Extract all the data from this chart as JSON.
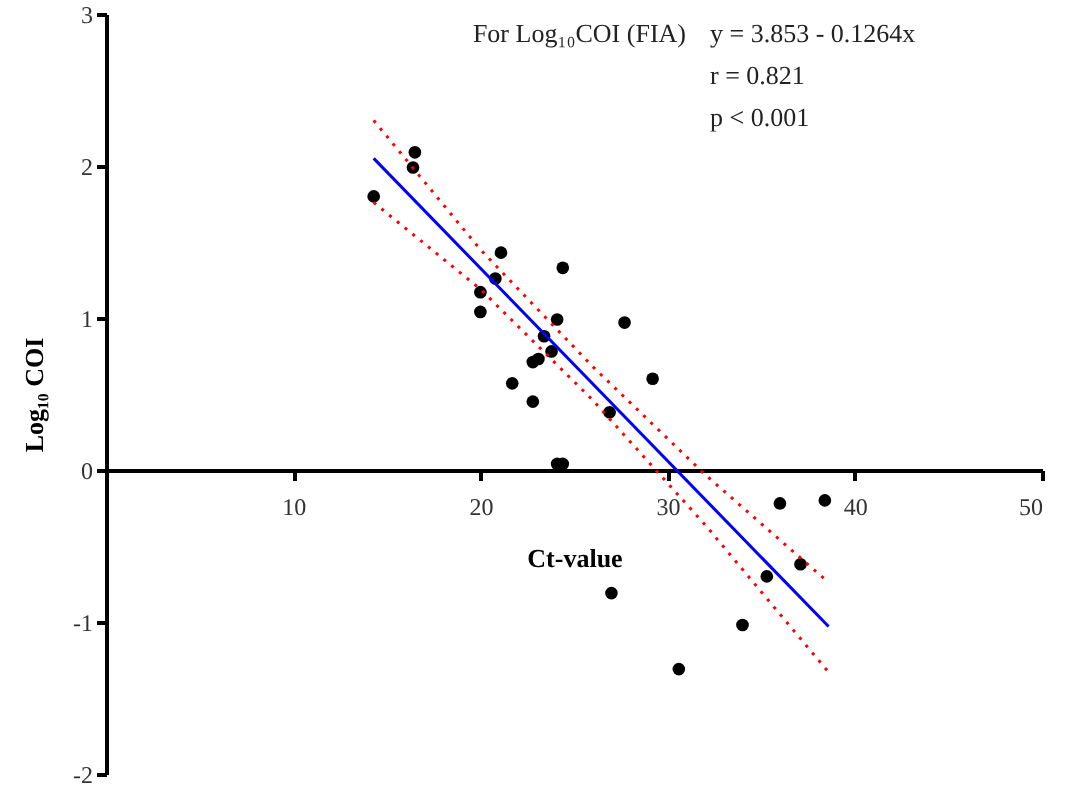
{
  "chart_data": {
    "type": "scatter",
    "xlabel": "Ct-value",
    "ylabel": "Log₁₀ COI",
    "annotations": [
      "For Log₁₀COI (FIA)",
      "y = 3.853 - 0.1264x",
      "r = 0.821",
      "p < 0.001"
    ],
    "xlim": [
      0,
      50
    ],
    "xticks": [
      10,
      20,
      30,
      40,
      50
    ],
    "ylim": [
      -2,
      3
    ],
    "yticks": [
      -2,
      -1,
      0,
      1,
      2,
      3
    ],
    "grid": false,
    "marker": "circle",
    "series": [
      {
        "color": "#000000",
        "x": [
          14.3,
          16.5,
          16.4,
          21.1,
          20.8,
          20.0,
          20.0,
          24.4,
          24.1,
          27.7,
          23.4,
          23.8,
          22.8,
          23.1,
          29.2,
          21.7,
          22.8,
          26.9,
          24.1,
          24.4,
          36.0,
          38.4,
          37.1,
          35.3,
          27.0,
          34.0,
          30.6
        ],
        "values": [
          1.8,
          2.09,
          1.99,
          1.43,
          1.26,
          1.17,
          1.04,
          1.33,
          0.99,
          0.97,
          0.88,
          0.78,
          0.71,
          0.73,
          0.6,
          0.57,
          0.45,
          0.38,
          0.04,
          0.04,
          -0.22,
          -0.2,
          -0.62,
          -0.7,
          -0.81,
          -1.02,
          -1.31
        ]
      },
      {
        "type": "line",
        "color": "#0000ff",
        "line_style": "solid",
        "marker": "none",
        "x": [
          14.3,
          38.6
        ],
        "values": [
          2.05,
          -1.03
        ]
      },
      {
        "type": "line",
        "color": "#ff0000",
        "line_style": "dotted",
        "x": [
          14.3,
          20,
          26,
          32,
          38.6
        ],
        "values": [
          2.3,
          1.45,
          0.68,
          -0.03,
          -0.74
        ],
        "marker": "none"
      },
      {
        "type": "line",
        "color": "#ff0000",
        "line_style": "dotted",
        "x": [
          14.3,
          20,
          26,
          32,
          38.6
        ],
        "values": [
          1.76,
          1.19,
          0.46,
          -0.36,
          -1.33
        ],
        "marker": "none"
      }
    ]
  }
}
